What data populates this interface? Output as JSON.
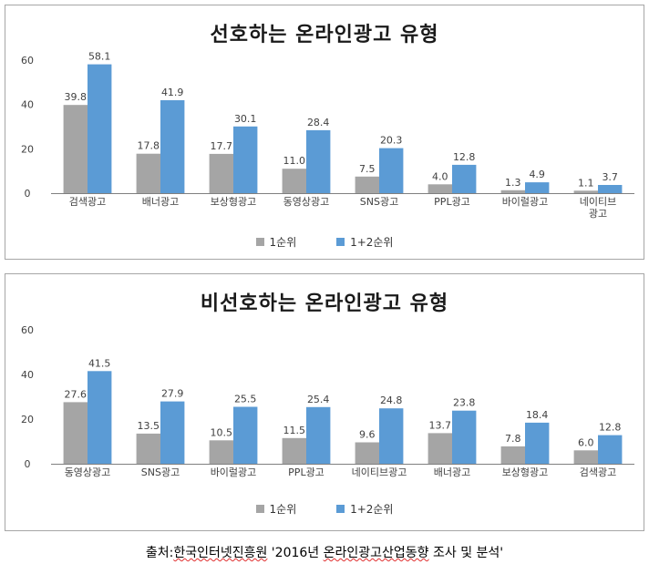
{
  "colors": {
    "s1": "#a5a5a5",
    "s2": "#5b9bd5",
    "axis": "#7f7f7f",
    "text": "#404040"
  },
  "chart_data": [
    {
      "type": "bar",
      "title": "선호하는 온라인광고 유형",
      "categories": [
        "검색광고",
        "배너광고",
        "보상형광고",
        "동영상광고",
        "SNS광고",
        "PPL광고",
        "바이럴광고",
        "네이티브 광고"
      ],
      "series": [
        {
          "name": "1순위",
          "values": [
            39.8,
            17.8,
            17.7,
            11.0,
            7.5,
            4.0,
            1.3,
            1.1
          ]
        },
        {
          "name": "1+2순위",
          "values": [
            58.1,
            41.9,
            30.1,
            28.4,
            20.3,
            12.8,
            4.9,
            3.7
          ]
        }
      ],
      "value_labels": [
        [
          "39.8",
          "17.8",
          "17.7",
          "11.0",
          "7.5",
          "4.0",
          "1.3",
          "1.1"
        ],
        [
          "58.1",
          "41.9",
          "30.1",
          "28.4",
          "20.3",
          "12.8",
          "4.9",
          "3.7"
        ]
      ],
      "yticks": [
        "0",
        "20",
        "40",
        "60"
      ],
      "ylim": [
        0,
        60
      ],
      "legend_position": "bottom",
      "grid": false
    },
    {
      "type": "bar",
      "title": "비선호하는 온라인광고 유형",
      "categories": [
        "동영상광고",
        "SNS광고",
        "바이럴광고",
        "PPL광고",
        "네이티브광고",
        "배너광고",
        "보상형광고",
        "검색광고"
      ],
      "series": [
        {
          "name": "1순위",
          "values": [
            27.6,
            13.5,
            10.5,
            11.5,
            9.6,
            13.7,
            7.8,
            6.0
          ]
        },
        {
          "name": "1+2순위",
          "values": [
            41.5,
            27.9,
            25.5,
            25.4,
            24.8,
            23.8,
            18.4,
            12.8
          ]
        }
      ],
      "value_labels": [
        [
          "27.6",
          "13.5",
          "10.5",
          "11.5",
          "9.6",
          "13.7",
          "7.8",
          "6.0"
        ],
        [
          "41.5",
          "27.9",
          "25.5",
          "25.4",
          "24.8",
          "23.8",
          "18.4",
          "12.8"
        ]
      ],
      "yticks": [
        "0",
        "20",
        "40",
        "60"
      ],
      "ylim": [
        0,
        60
      ],
      "legend_position": "bottom",
      "grid": false
    }
  ],
  "caption": {
    "prefix": "출처:",
    "source": "한국인터넷진흥원",
    "middle": " '2016년 ",
    "report": "온라인광고산업동향",
    "suffix": " 조사 및 분석'"
  }
}
